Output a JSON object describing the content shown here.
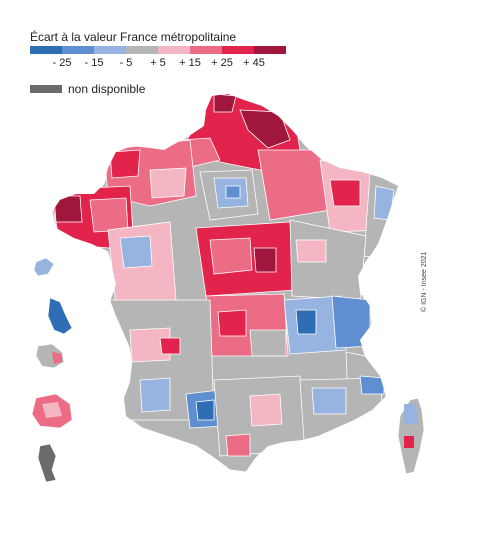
{
  "legend": {
    "title": "Écart à la valeur France métropolitaine",
    "classes": [
      {
        "color": "#2f6db5"
      },
      {
        "color": "#5f8fd0"
      },
      {
        "color": "#97b4e0"
      },
      {
        "color": "#b5b5b5"
      },
      {
        "color": "#f4b6c2"
      },
      {
        "color": "#ec6b85"
      },
      {
        "color": "#e2234b"
      },
      {
        "color": "#a0163c"
      }
    ],
    "breaks": [
      "- 25",
      "- 15",
      "- 5",
      "+ 5",
      "+ 15",
      "+ 25",
      "+ 45"
    ],
    "not_available": {
      "label": "non disponible",
      "color": "#6b6b6b"
    }
  },
  "copyright": "© IGN - Insee 2021",
  "colors": {
    "blue_dark": "#2f6db5",
    "blue_mid": "#5f8fd0",
    "blue_light": "#97b4e0",
    "grey": "#b5b5b5",
    "pink_light": "#f4b6c2",
    "pink": "#ec6b85",
    "red": "#e2234b",
    "red_dark": "#a0163c",
    "na": "#6b6b6b"
  }
}
